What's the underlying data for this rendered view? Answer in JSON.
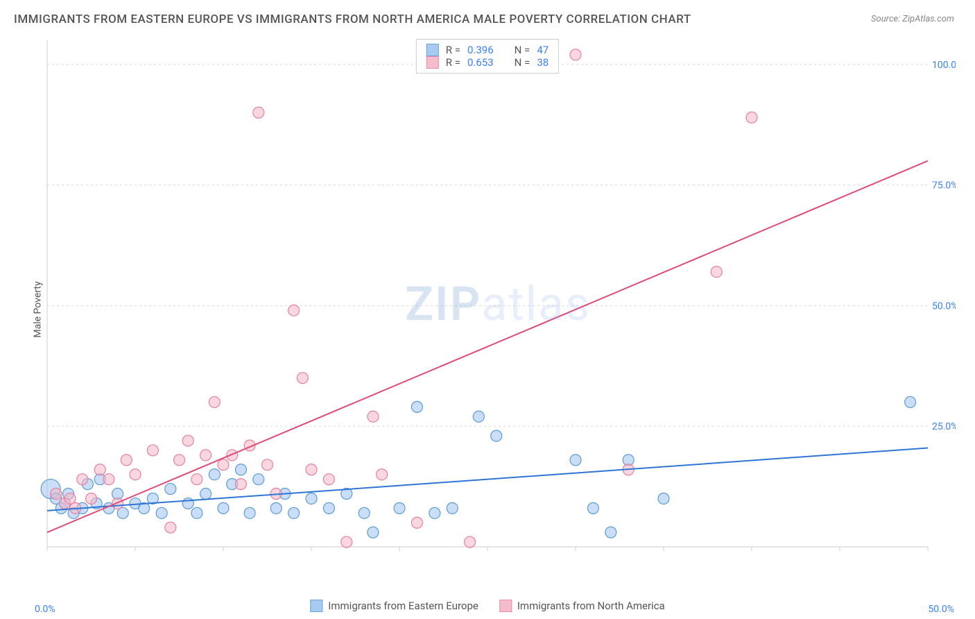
{
  "title": "IMMIGRANTS FROM EASTERN EUROPE VS IMMIGRANTS FROM NORTH AMERICA MALE POVERTY CORRELATION CHART",
  "source": "Source: ZipAtlas.com",
  "watermark_zip": "ZIP",
  "watermark_atlas": "atlas",
  "y_axis_label": "Male Poverty",
  "chart": {
    "type": "scatter-with-regression",
    "xlim": [
      0,
      50
    ],
    "ylim": [
      0,
      105
    ],
    "x_ticks": [
      0,
      5,
      10,
      15,
      20,
      25,
      30,
      35,
      40,
      45,
      50
    ],
    "x_tick_labels": {
      "0": "0.0%",
      "50": "50.0%"
    },
    "y_gridlines": [
      25,
      50,
      75,
      100
    ],
    "y_tick_labels": {
      "25": "25.0%",
      "50": "50.0%",
      "75": "75.0%",
      "100": "100.0%"
    },
    "background_color": "#ffffff",
    "grid_color": "#d8d8d8",
    "axis_color": "#cccccc",
    "marker_radius": 8,
    "marker_radius_large": 14,
    "series": [
      {
        "id": "eastern_europe",
        "legend_label": "Immigrants from Eastern Europe",
        "fill": "#9ec5f0",
        "stroke": "#5b9bd5",
        "fill_opacity": 0.55,
        "line_color": "#2e75d6",
        "line_width": 2,
        "R": "0.396",
        "N": "47",
        "regression": {
          "x1": 0,
          "y1": 7.5,
          "x2": 50,
          "y2": 20.5
        },
        "points": [
          {
            "x": 0.2,
            "y": 12,
            "r": 14
          },
          {
            "x": 0.5,
            "y": 10
          },
          {
            "x": 0.8,
            "y": 8
          },
          {
            "x": 1,
            "y": 9
          },
          {
            "x": 1.2,
            "y": 11
          },
          {
            "x": 1.5,
            "y": 7
          },
          {
            "x": 2,
            "y": 8
          },
          {
            "x": 2.3,
            "y": 13
          },
          {
            "x": 2.8,
            "y": 9
          },
          {
            "x": 3,
            "y": 14
          },
          {
            "x": 3.5,
            "y": 8
          },
          {
            "x": 4,
            "y": 11
          },
          {
            "x": 4.3,
            "y": 7
          },
          {
            "x": 5,
            "y": 9
          },
          {
            "x": 5.5,
            "y": 8
          },
          {
            "x": 6,
            "y": 10
          },
          {
            "x": 6.5,
            "y": 7
          },
          {
            "x": 7,
            "y": 12
          },
          {
            "x": 8,
            "y": 9
          },
          {
            "x": 8.5,
            "y": 7
          },
          {
            "x": 9,
            "y": 11
          },
          {
            "x": 9.5,
            "y": 15
          },
          {
            "x": 10,
            "y": 8
          },
          {
            "x": 10.5,
            "y": 13
          },
          {
            "x": 11,
            "y": 16
          },
          {
            "x": 11.5,
            "y": 7
          },
          {
            "x": 12,
            "y": 14
          },
          {
            "x": 13,
            "y": 8
          },
          {
            "x": 13.5,
            "y": 11
          },
          {
            "x": 14,
            "y": 7
          },
          {
            "x": 15,
            "y": 10
          },
          {
            "x": 16,
            "y": 8
          },
          {
            "x": 17,
            "y": 11
          },
          {
            "x": 18,
            "y": 7
          },
          {
            "x": 18.5,
            "y": 3
          },
          {
            "x": 20,
            "y": 8
          },
          {
            "x": 21,
            "y": 29
          },
          {
            "x": 22,
            "y": 7
          },
          {
            "x": 23,
            "y": 8
          },
          {
            "x": 24.5,
            "y": 27
          },
          {
            "x": 25.5,
            "y": 23
          },
          {
            "x": 30,
            "y": 18
          },
          {
            "x": 31,
            "y": 8
          },
          {
            "x": 32,
            "y": 3
          },
          {
            "x": 33,
            "y": 18
          },
          {
            "x": 35,
            "y": 10
          },
          {
            "x": 49,
            "y": 30
          }
        ]
      },
      {
        "id": "north_america",
        "legend_label": "Immigrants from North America",
        "fill": "#f4b6c6",
        "stroke": "#e87fa0",
        "fill_opacity": 0.55,
        "line_color": "#e04a78",
        "line_width": 2,
        "R": "0.653",
        "N": "38",
        "regression": {
          "x1": 0,
          "y1": 3,
          "x2": 50,
          "y2": 80
        },
        "points": [
          {
            "x": 0.5,
            "y": 11
          },
          {
            "x": 1,
            "y": 9
          },
          {
            "x": 1.3,
            "y": 10
          },
          {
            "x": 1.6,
            "y": 8
          },
          {
            "x": 2,
            "y": 14
          },
          {
            "x": 2.5,
            "y": 10
          },
          {
            "x": 3,
            "y": 16
          },
          {
            "x": 3.5,
            "y": 14
          },
          {
            "x": 4,
            "y": 9
          },
          {
            "x": 4.5,
            "y": 18
          },
          {
            "x": 5,
            "y": 15
          },
          {
            "x": 6,
            "y": 20
          },
          {
            "x": 7,
            "y": 4
          },
          {
            "x": 7.5,
            "y": 18
          },
          {
            "x": 8,
            "y": 22
          },
          {
            "x": 8.5,
            "y": 14
          },
          {
            "x": 9,
            "y": 19
          },
          {
            "x": 9.5,
            "y": 30
          },
          {
            "x": 10,
            "y": 17
          },
          {
            "x": 10.5,
            "y": 19
          },
          {
            "x": 11,
            "y": 13
          },
          {
            "x": 11.5,
            "y": 21
          },
          {
            "x": 12,
            "y": 90
          },
          {
            "x": 12.5,
            "y": 17
          },
          {
            "x": 13,
            "y": 11
          },
          {
            "x": 14,
            "y": 49
          },
          {
            "x": 14.5,
            "y": 35
          },
          {
            "x": 15,
            "y": 16
          },
          {
            "x": 16,
            "y": 14
          },
          {
            "x": 17,
            "y": 1
          },
          {
            "x": 18.5,
            "y": 27
          },
          {
            "x": 19,
            "y": 15
          },
          {
            "x": 21,
            "y": 5
          },
          {
            "x": 24,
            "y": 1
          },
          {
            "x": 30,
            "y": 102
          },
          {
            "x": 33,
            "y": 16
          },
          {
            "x": 38,
            "y": 57
          },
          {
            "x": 40,
            "y": 89
          }
        ]
      }
    ]
  },
  "legend_top_label_R": "R =",
  "legend_top_label_N": "N ="
}
